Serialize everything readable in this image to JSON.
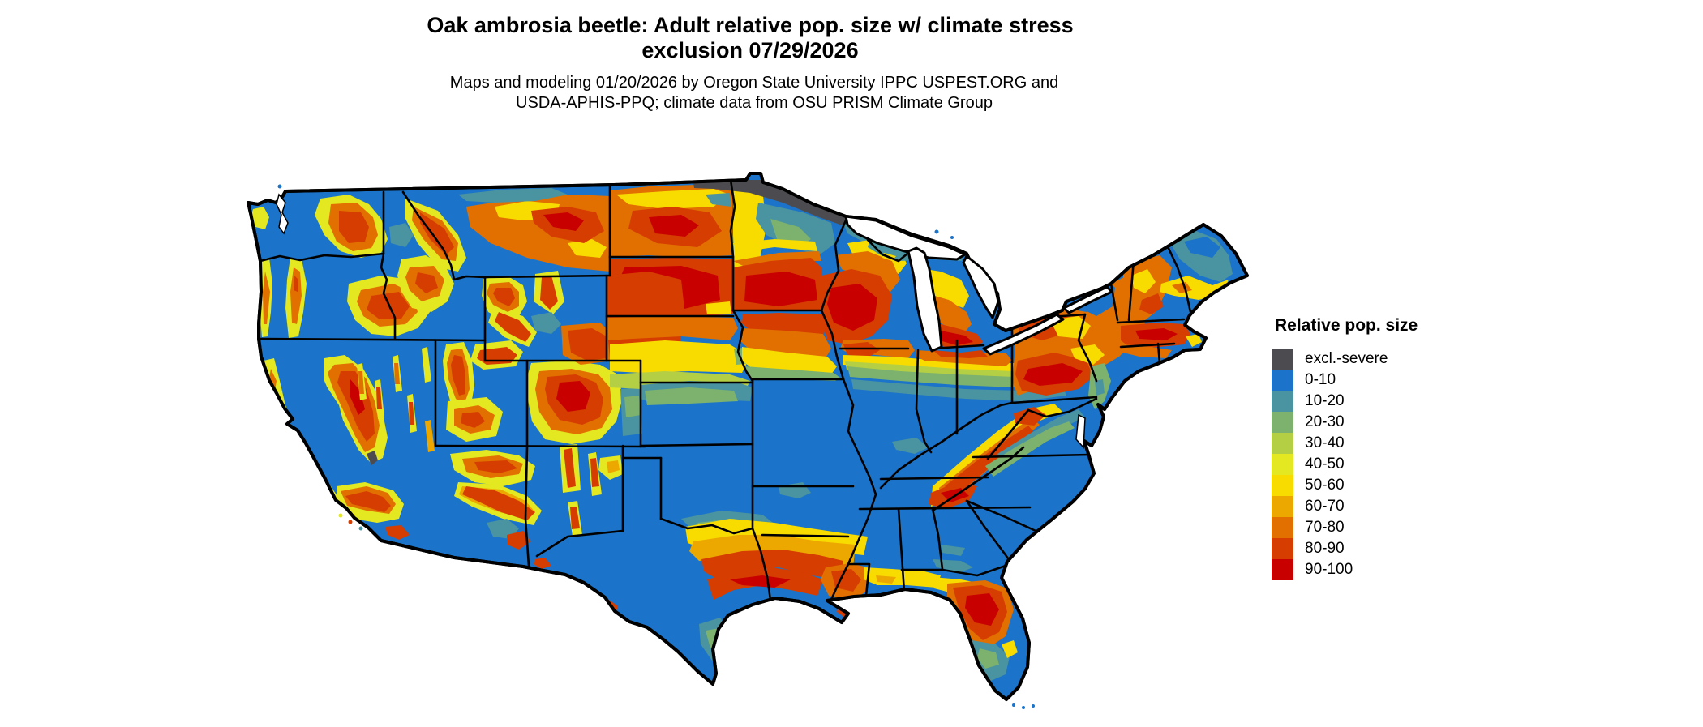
{
  "title": {
    "line1": "Oak ambrosia beetle: Adult relative pop. size w/ climate stress",
    "line2": "exclusion 07/29/2026"
  },
  "subtitle": {
    "line1": "Maps and modeling 01/20/2026 by Oregon State University IPPC USPEST.ORG and",
    "line2": "USDA-APHIS-PPQ; climate data from OSU PRISM Climate Group"
  },
  "legend": {
    "title": "Relative pop. size",
    "items": [
      {
        "label": "excl.-severe",
        "color": "#4c4c50"
      },
      {
        "label": "0-10",
        "color": "#1b74c9"
      },
      {
        "label": "10-20",
        "color": "#4a93a0"
      },
      {
        "label": "20-30",
        "color": "#7cb26e"
      },
      {
        "label": "30-40",
        "color": "#b5cf44"
      },
      {
        "label": "40-50",
        "color": "#e3e821"
      },
      {
        "label": "50-60",
        "color": "#f8dc00"
      },
      {
        "label": "60-70",
        "color": "#eda800"
      },
      {
        "label": "70-80",
        "color": "#e17000"
      },
      {
        "label": "80-90",
        "color": "#d63d00"
      },
      {
        "label": "90-100",
        "color": "#c80000"
      }
    ]
  },
  "map": {
    "area_label": "contiguous-united-states",
    "kind": "raster choropleth with state borders"
  }
}
